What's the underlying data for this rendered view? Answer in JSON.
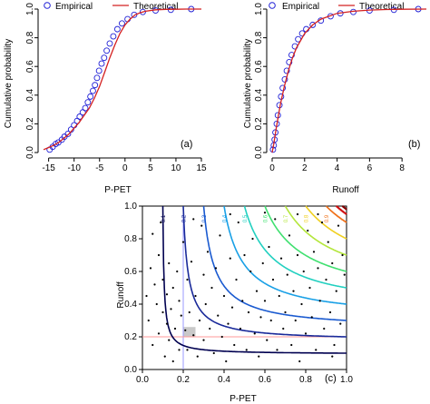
{
  "chart_data": [
    {
      "id": "a",
      "type": "line",
      "panel_label": "(a)",
      "xlabel": "P-PET",
      "ylabel": "Cumulative probability",
      "xlim": [
        -16,
        15
      ],
      "ylim": [
        0,
        1
      ],
      "xticks": [
        -15,
        -10,
        -5,
        0,
        5,
        10,
        15
      ],
      "yticks": [
        0.0,
        0.2,
        0.4,
        0.6,
        0.8,
        1.0
      ],
      "xtick_labels": [
        "-15",
        "-10",
        "-5",
        "0",
        "5",
        "10",
        "15"
      ],
      "ytick_labels": [
        "0.0",
        "0.2",
        "0.4",
        "0.6",
        "0.8",
        "1.0"
      ],
      "legend": {
        "position": "top",
        "entries": [
          "Empirical",
          "Theoretical"
        ]
      },
      "series": [
        {
          "name": "Empirical",
          "style": "circles",
          "color": "#1f1fd6",
          "points": [
            [
              -14.8,
              0.02
            ],
            [
              -14.2,
              0.04
            ],
            [
              -13.6,
              0.06
            ],
            [
              -13.1,
              0.07
            ],
            [
              -12.4,
              0.09
            ],
            [
              -11.9,
              0.11
            ],
            [
              -11.2,
              0.13
            ],
            [
              -10.6,
              0.16
            ],
            [
              -10.0,
              0.19
            ],
            [
              -9.4,
              0.22
            ],
            [
              -8.9,
              0.25
            ],
            [
              -8.3,
              0.28
            ],
            [
              -7.8,
              0.31
            ],
            [
              -7.3,
              0.35
            ],
            [
              -6.8,
              0.39
            ],
            [
              -6.3,
              0.43
            ],
            [
              -5.9,
              0.47
            ],
            [
              -5.5,
              0.52
            ],
            [
              -5.1,
              0.57
            ],
            [
              -4.6,
              0.62
            ],
            [
              -4.1,
              0.66
            ],
            [
              -3.6,
              0.71
            ],
            [
              -3.0,
              0.76
            ],
            [
              -2.3,
              0.81
            ],
            [
              -1.5,
              0.86
            ],
            [
              -0.6,
              0.9
            ],
            [
              0.5,
              0.93
            ],
            [
              1.8,
              0.96
            ],
            [
              3.5,
              0.98
            ],
            [
              6.0,
              0.99
            ],
            [
              9.0,
              0.995
            ],
            [
              13.0,
              1.0
            ]
          ]
        },
        {
          "name": "Theoretical",
          "style": "line",
          "color": "#d42020",
          "x": [
            -16,
            -15,
            -14,
            -13,
            -12,
            -11,
            -10,
            -9,
            -8,
            -7,
            -6,
            -5,
            -4,
            -3,
            -2,
            -1,
            0,
            1,
            2,
            3,
            4,
            6,
            8,
            10,
            12,
            15
          ],
          "y": [
            0.02,
            0.035,
            0.05,
            0.07,
            0.1,
            0.13,
            0.17,
            0.21,
            0.26,
            0.31,
            0.38,
            0.46,
            0.56,
            0.66,
            0.75,
            0.83,
            0.89,
            0.93,
            0.96,
            0.975,
            0.985,
            0.995,
            0.998,
            0.999,
            1.0,
            1.0
          ]
        }
      ]
    },
    {
      "id": "b",
      "type": "line",
      "panel_label": "(b)",
      "xlabel": "Runoff",
      "ylabel": "Cumulative probability",
      "xlim": [
        0,
        9.5
      ],
      "ylim": [
        0,
        1
      ],
      "xticks": [
        0,
        2,
        4,
        6,
        8
      ],
      "yticks": [
        0.0,
        0.2,
        0.4,
        0.6,
        0.8,
        1.0
      ],
      "xtick_labels": [
        "0",
        "2",
        "4",
        "6",
        "8"
      ],
      "ytick_labels": [
        "0.0",
        "0.2",
        "0.4",
        "0.6",
        "0.8",
        "1.0"
      ],
      "legend": {
        "position": "top",
        "entries": [
          "Empirical",
          "Theoretical"
        ]
      },
      "series": [
        {
          "name": "Empirical",
          "style": "circles",
          "color": "#1f1fd6",
          "points": [
            [
              0.05,
              0.02
            ],
            [
              0.1,
              0.05
            ],
            [
              0.15,
              0.09
            ],
            [
              0.2,
              0.14
            ],
            [
              0.28,
              0.2
            ],
            [
              0.35,
              0.26
            ],
            [
              0.45,
              0.33
            ],
            [
              0.55,
              0.39
            ],
            [
              0.65,
              0.45
            ],
            [
              0.78,
              0.51
            ],
            [
              0.9,
              0.57
            ],
            [
              1.05,
              0.63
            ],
            [
              1.2,
              0.68
            ],
            [
              1.4,
              0.74
            ],
            [
              1.6,
              0.79
            ],
            [
              1.85,
              0.83
            ],
            [
              2.1,
              0.86
            ],
            [
              2.5,
              0.89
            ],
            [
              3.0,
              0.92
            ],
            [
              3.6,
              0.95
            ],
            [
              4.2,
              0.97
            ],
            [
              5.0,
              0.98
            ],
            [
              6.0,
              0.99
            ],
            [
              7.5,
              0.995
            ],
            [
              9.0,
              1.0
            ]
          ]
        },
        {
          "name": "Theoretical",
          "style": "line",
          "color": "#d42020",
          "x": [
            0,
            0.1,
            0.25,
            0.5,
            0.75,
            1,
            1.25,
            1.5,
            2,
            2.5,
            3,
            4,
            5,
            6,
            7,
            8,
            9.5
          ],
          "y": [
            0,
            0.06,
            0.17,
            0.33,
            0.46,
            0.57,
            0.66,
            0.73,
            0.83,
            0.89,
            0.93,
            0.97,
            0.985,
            0.993,
            0.997,
            0.999,
            1.0
          ]
        }
      ]
    },
    {
      "id": "c",
      "type": "scatter",
      "panel_label": "(c)",
      "xlabel": "P-PET",
      "ylabel": "Runoff",
      "xlim": [
        0,
        1
      ],
      "ylim": [
        0,
        1
      ],
      "xticks": [
        0.0,
        0.2,
        0.4,
        0.6,
        0.8,
        1.0
      ],
      "yticks": [
        0.0,
        0.2,
        0.4,
        0.6,
        0.8,
        1.0
      ],
      "xtick_labels": [
        "0.0",
        "0.2",
        "0.4",
        "0.6",
        "0.8",
        "1.0"
      ],
      "ytick_labels": [
        "0.0",
        "0.2",
        "0.4",
        "0.6",
        "0.8",
        "1.0"
      ],
      "reference_lines": {
        "x": 0.2,
        "y": 0.2,
        "x_color": "#9999ff",
        "y_color": "#ff9999"
      },
      "shaded_region": {
        "x": [
          0.2,
          0.26
        ],
        "y": [
          0.2,
          0.26
        ],
        "color": "#bbbbbb"
      },
      "contours": [
        {
          "level": 0.1,
          "label": "0.1",
          "color": "#000050"
        },
        {
          "level": 0.2,
          "label": "0.2",
          "color": "#1a2a9a"
        },
        {
          "level": 0.3,
          "label": "0.3",
          "color": "#1a5ad0"
        },
        {
          "level": 0.4,
          "label": "0.4",
          "color": "#19a0e6"
        },
        {
          "level": 0.5,
          "label": "0.5",
          "color": "#22d0c0"
        },
        {
          "level": 0.6,
          "label": "0.6",
          "color": "#40e070"
        },
        {
          "level": 0.7,
          "label": "0.7",
          "color": "#b4e63c"
        },
        {
          "level": 0.8,
          "label": "0.8",
          "color": "#f0d020"
        },
        {
          "level": 0.9,
          "label": "0.9",
          "color": "#f07018"
        },
        {
          "level": 0.95,
          "label": "",
          "color": "#d01010"
        },
        {
          "level": 0.98,
          "label": "",
          "color": "#800000"
        }
      ],
      "points": [
        [
          0.02,
          0.45
        ],
        [
          0.03,
          0.3
        ],
        [
          0.04,
          0.62
        ],
        [
          0.05,
          0.15
        ],
        [
          0.05,
          0.83
        ],
        [
          0.06,
          0.52
        ],
        [
          0.07,
          0.4
        ],
        [
          0.08,
          0.22
        ],
        [
          0.08,
          0.7
        ],
        [
          0.09,
          0.9
        ],
        [
          0.1,
          0.35
        ],
        [
          0.1,
          0.55
        ],
        [
          0.11,
          0.08
        ],
        [
          0.12,
          0.28
        ],
        [
          0.12,
          0.46
        ],
        [
          0.13,
          0.18
        ],
        [
          0.13,
          0.65
        ],
        [
          0.14,
          0.37
        ],
        [
          0.15,
          0.05
        ],
        [
          0.15,
          0.5
        ],
        [
          0.16,
          0.25
        ],
        [
          0.17,
          0.6
        ],
        [
          0.18,
          0.12
        ],
        [
          0.18,
          0.42
        ],
        [
          0.19,
          0.33
        ],
        [
          0.2,
          0.78
        ],
        [
          0.21,
          0.24
        ],
        [
          0.22,
          0.12
        ],
        [
          0.22,
          0.55
        ],
        [
          0.23,
          0.35
        ],
        [
          0.24,
          0.66
        ],
        [
          0.25,
          0.21
        ],
        [
          0.26,
          0.45
        ],
        [
          0.27,
          0.08
        ],
        [
          0.28,
          0.3
        ],
        [
          0.29,
          0.88
        ],
        [
          0.3,
          0.18
        ],
        [
          0.3,
          0.58
        ],
        [
          0.31,
          0.4
        ],
        [
          0.32,
          0.72
        ],
        [
          0.33,
          0.25
        ],
        [
          0.34,
          0.5
        ],
        [
          0.35,
          0.1
        ],
        [
          0.36,
          0.62
        ],
        [
          0.37,
          0.33
        ],
        [
          0.38,
          0.82
        ],
        [
          0.39,
          0.2
        ],
        [
          0.4,
          0.45
        ],
        [
          0.41,
          0.05
        ],
        [
          0.42,
          0.28
        ],
        [
          0.43,
          0.68
        ],
        [
          0.44,
          0.38
        ],
        [
          0.45,
          0.15
        ],
        [
          0.46,
          0.55
        ],
        [
          0.47,
          0.9
        ],
        [
          0.48,
          0.25
        ],
        [
          0.49,
          0.42
        ],
        [
          0.5,
          0.7
        ],
        [
          0.51,
          0.12
        ],
        [
          0.52,
          0.35
        ],
        [
          0.53,
          0.6
        ],
        [
          0.54,
          0.8
        ],
        [
          0.55,
          0.22
        ],
        [
          0.56,
          0.48
        ],
        [
          0.57,
          0.08
        ],
        [
          0.58,
          0.32
        ],
        [
          0.59,
          0.65
        ],
        [
          0.6,
          0.42
        ],
        [
          0.61,
          0.18
        ],
        [
          0.62,
          0.75
        ],
        [
          0.63,
          0.3
        ],
        [
          0.64,
          0.55
        ],
        [
          0.65,
          0.92
        ],
        [
          0.66,
          0.12
        ],
        [
          0.67,
          0.45
        ],
        [
          0.68,
          0.68
        ],
        [
          0.69,
          0.25
        ],
        [
          0.7,
          0.35
        ],
        [
          0.71,
          0.58
        ],
        [
          0.72,
          0.82
        ],
        [
          0.73,
          0.15
        ],
        [
          0.74,
          0.48
        ],
        [
          0.75,
          0.3
        ],
        [
          0.76,
          0.7
        ],
        [
          0.77,
          0.05
        ],
        [
          0.78,
          0.4
        ],
        [
          0.79,
          0.6
        ],
        [
          0.8,
          0.22
        ],
        [
          0.81,
          0.85
        ],
        [
          0.82,
          0.5
        ],
        [
          0.83,
          0.32
        ],
        [
          0.84,
          0.72
        ],
        [
          0.85,
          0.12
        ],
        [
          0.86,
          0.62
        ],
        [
          0.87,
          0.42
        ],
        [
          0.88,
          0.9
        ],
        [
          0.89,
          0.25
        ],
        [
          0.9,
          0.55
        ],
        [
          0.91,
          0.78
        ],
        [
          0.92,
          0.35
        ],
        [
          0.93,
          0.65
        ],
        [
          0.94,
          0.15
        ],
        [
          0.95,
          0.48
        ],
        [
          0.96,
          0.88
        ],
        [
          0.97,
          0.28
        ],
        [
          0.98,
          0.7
        ],
        [
          0.99,
          0.58
        ],
        [
          0.93,
          0.08
        ],
        [
          0.86,
          0.95
        ],
        [
          0.76,
          0.95
        ],
        [
          0.6,
          0.96
        ],
        [
          0.43,
          0.95
        ],
        [
          0.25,
          0.92
        ]
      ]
    }
  ]
}
